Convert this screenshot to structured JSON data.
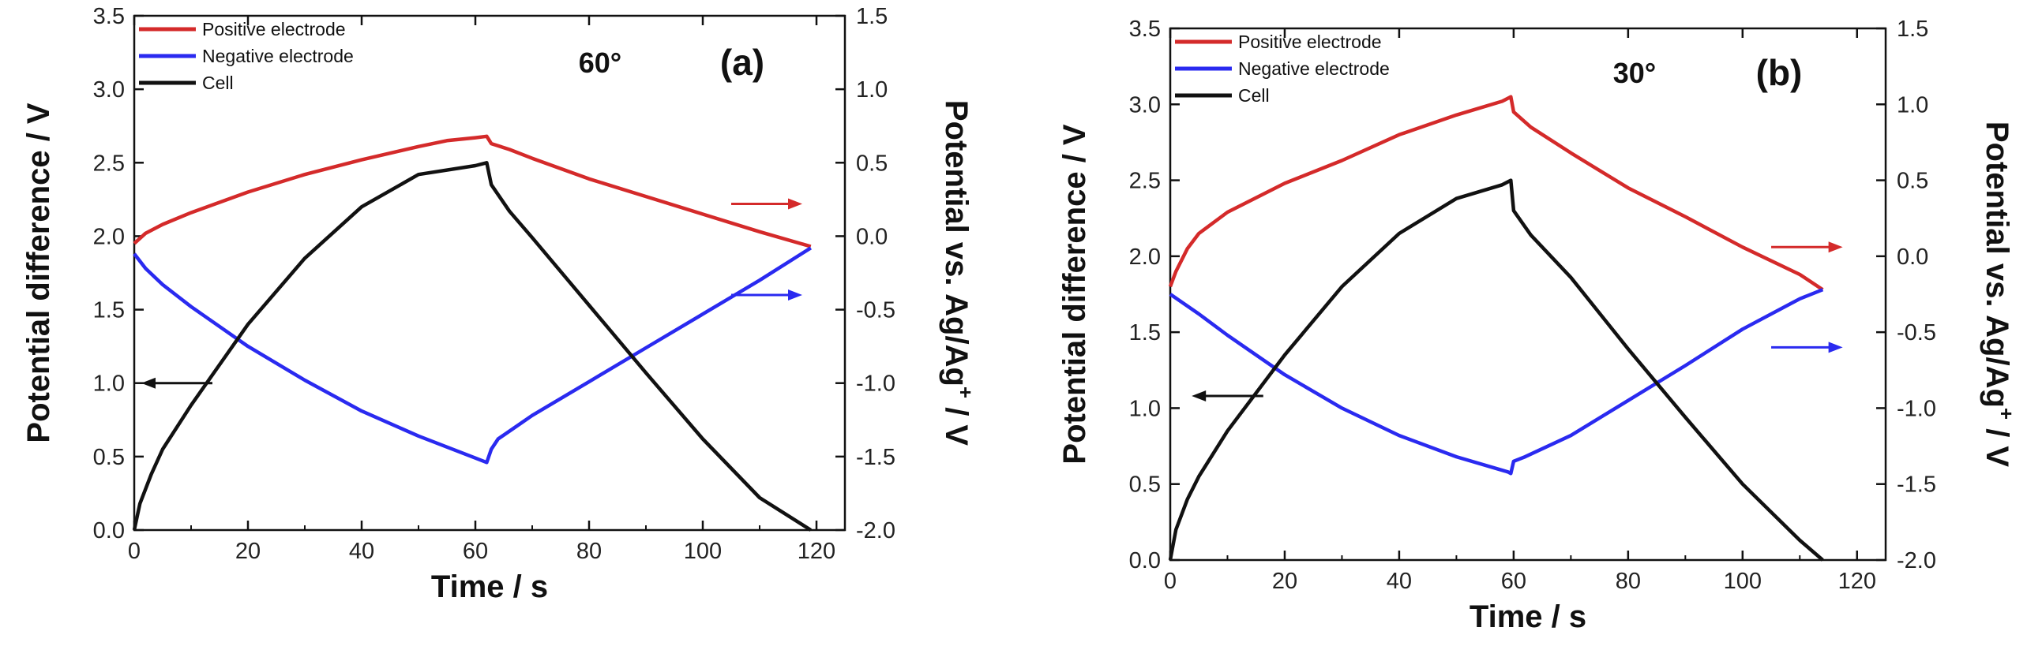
{
  "chart_data": [
    {
      "type": "line",
      "panel_label": "(a)",
      "annotation": "60°",
      "xlabel": "Time / s",
      "ylabel": "Potential difference  / V",
      "ylabel2": "Potential vs. Ag/Ag",
      "ylabel2_sup": "+",
      "ylabel2_unit": " / V",
      "xlim": [
        0,
        125
      ],
      "ylim": [
        0,
        3.5
      ],
      "y2lim": [
        -2.0,
        1.5
      ],
      "xticks": [
        "0",
        "20",
        "40",
        "60",
        "80",
        "100",
        "120"
      ],
      "yticks": [
        "0.0",
        "0.5",
        "1.0",
        "1.5",
        "2.0",
        "2.5",
        "3.0",
        "3.5"
      ],
      "y2ticks": [
        "-2.0",
        "-1.5",
        "-1.0",
        "-0.5",
        "0.0",
        "0.5",
        "1.0",
        "1.5"
      ],
      "legend_position": "top-left",
      "series": [
        {
          "name": "Positive electrode",
          "axis": "right",
          "color": "#d42a2a",
          "x": [
            0,
            2,
            5,
            10,
            20,
            30,
            40,
            50,
            55,
            60,
            62,
            62.8,
            66,
            70,
            80,
            90,
            100,
            110,
            119
          ],
          "y": [
            -0.05,
            0.02,
            0.08,
            0.16,
            0.3,
            0.42,
            0.52,
            0.61,
            0.65,
            0.67,
            0.68,
            0.63,
            0.59,
            0.53,
            0.39,
            0.27,
            0.15,
            0.03,
            -0.07
          ]
        },
        {
          "name": "Negative electrode",
          "axis": "right",
          "color": "#2a2af0",
          "x": [
            0,
            2,
            5,
            10,
            20,
            30,
            40,
            50,
            60,
            62,
            62.8,
            64,
            67,
            70,
            80,
            90,
            100,
            110,
            119
          ],
          "y": [
            -0.12,
            -0.22,
            -0.33,
            -0.48,
            -0.75,
            -0.98,
            -1.19,
            -1.36,
            -1.51,
            -1.54,
            -1.45,
            -1.38,
            -1.3,
            -1.22,
            -0.99,
            -0.76,
            -0.53,
            -0.3,
            -0.08
          ]
        },
        {
          "name": "Cell",
          "axis": "left",
          "color": "#111111",
          "x": [
            0,
            1,
            3,
            5,
            10,
            20,
            30,
            40,
            50,
            60,
            62,
            62.8,
            66,
            70,
            80,
            90,
            100,
            110,
            119
          ],
          "y": [
            0.0,
            0.18,
            0.38,
            0.55,
            0.85,
            1.4,
            1.85,
            2.2,
            2.42,
            2.48,
            2.5,
            2.35,
            2.17,
            1.99,
            1.53,
            1.07,
            0.62,
            0.22,
            0.0
          ]
        }
      ]
    },
    {
      "type": "line",
      "panel_label": "(b)",
      "annotation": "30°",
      "xlabel": "Time / s",
      "ylabel": "Potential difference  / V",
      "ylabel2": "Potential vs. Ag/Ag",
      "ylabel2_sup": "+",
      "ylabel2_unit": " / V",
      "xlim": [
        0,
        125
      ],
      "ylim": [
        0,
        3.5
      ],
      "y2lim": [
        -2.0,
        1.5
      ],
      "xticks": [
        "0",
        "20",
        "40",
        "60",
        "80",
        "100",
        "120"
      ],
      "yticks": [
        "0.0",
        "0.5",
        "1.0",
        "1.5",
        "2.0",
        "2.5",
        "3.0",
        "3.5"
      ],
      "y2ticks": [
        "-2.0",
        "-1.5",
        "-1.0",
        "-0.5",
        "0.0",
        "0.5",
        "1.0",
        "1.5"
      ],
      "legend_position": "top-left",
      "series": [
        {
          "name": "Positive electrode",
          "axis": "right",
          "color": "#d42a2a",
          "x": [
            0,
            1,
            3,
            5,
            10,
            20,
            30,
            40,
            50,
            58,
            59.5,
            60,
            63,
            70,
            80,
            90,
            100,
            110,
            114
          ],
          "y": [
            -0.2,
            -0.1,
            0.05,
            0.15,
            0.29,
            0.48,
            0.63,
            0.8,
            0.93,
            1.02,
            1.05,
            0.95,
            0.85,
            0.68,
            0.45,
            0.26,
            0.06,
            -0.12,
            -0.22
          ]
        },
        {
          "name": "Negative electrode",
          "axis": "right",
          "color": "#2a2af0",
          "x": [
            0,
            5,
            10,
            20,
            30,
            40,
            50,
            59,
            59.5,
            60,
            62,
            70,
            80,
            90,
            100,
            110,
            114
          ],
          "y": [
            -0.25,
            -0.38,
            -0.52,
            -0.78,
            -1.0,
            -1.18,
            -1.32,
            -1.42,
            -1.43,
            -1.35,
            -1.32,
            -1.18,
            -0.95,
            -0.72,
            -0.48,
            -0.28,
            -0.22
          ]
        },
        {
          "name": "Cell",
          "axis": "left",
          "color": "#111111",
          "x": [
            0,
            1,
            3,
            5,
            10,
            20,
            30,
            40,
            50,
            58,
            59.5,
            60,
            63,
            70,
            80,
            90,
            100,
            110,
            114
          ],
          "y": [
            0.0,
            0.2,
            0.4,
            0.55,
            0.85,
            1.35,
            1.8,
            2.15,
            2.38,
            2.47,
            2.5,
            2.3,
            2.14,
            1.86,
            1.39,
            0.94,
            0.5,
            0.13,
            0.0
          ]
        }
      ]
    }
  ]
}
